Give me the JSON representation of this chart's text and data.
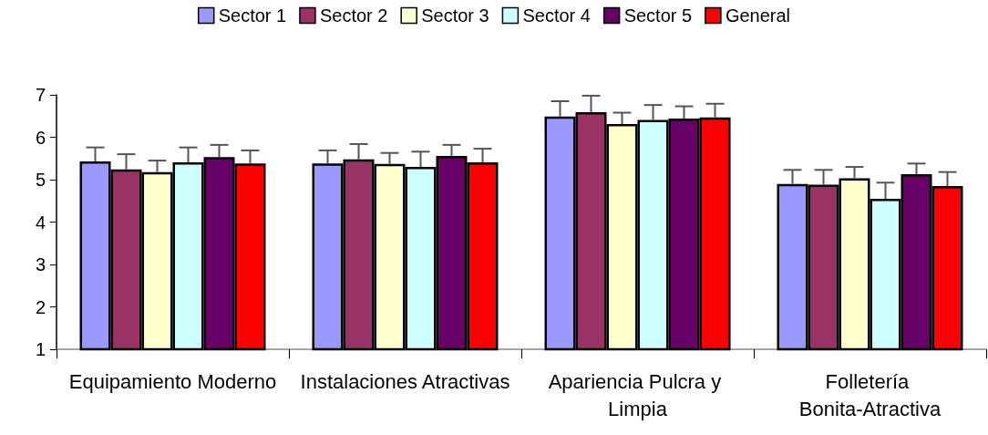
{
  "chart_data": {
    "type": "bar",
    "categories": [
      "Equipamiento Moderno",
      "Instalaciones Atractivas",
      "Apariencia Pulcra y Limpia",
      "Folletería Bonita-Atractiva"
    ],
    "series": [
      {
        "name": "Sector 1",
        "color": "#9999ff",
        "values": [
          5.43,
          5.38,
          6.49,
          4.9
        ],
        "errors": [
          [
            5.43,
            5.76
          ],
          [
            5.38,
            5.69
          ],
          [
            6.49,
            6.85
          ],
          [
            4.9,
            5.23
          ]
        ]
      },
      {
        "name": "Sector 2",
        "color": "#993366",
        "values": [
          5.24,
          5.48,
          6.59,
          4.88
        ],
        "errors": [
          [
            5.24,
            5.6
          ],
          [
            5.48,
            5.84
          ],
          [
            6.59,
            6.98
          ],
          [
            4.88,
            5.23
          ]
        ]
      },
      {
        "name": "Sector 3",
        "color": "#ffffcc",
        "values": [
          5.18,
          5.37,
          6.31,
          5.03
        ],
        "errors": [
          [
            5.18,
            5.45
          ],
          [
            5.37,
            5.63
          ],
          [
            6.31,
            6.58
          ],
          [
            5.03,
            5.3
          ]
        ]
      },
      {
        "name": "Sector 4",
        "color": "#ccffff",
        "values": [
          5.41,
          5.3,
          6.41,
          4.55
        ],
        "errors": [
          [
            5.41,
            5.76
          ],
          [
            5.3,
            5.66
          ],
          [
            6.41,
            6.76
          ],
          [
            4.55,
            4.93
          ]
        ]
      },
      {
        "name": "Sector 5",
        "color": "#660066",
        "values": [
          5.53,
          5.56,
          6.44,
          5.13
        ],
        "errors": [
          [
            5.53,
            5.82
          ],
          [
            5.56,
            5.82
          ],
          [
            6.44,
            6.73
          ],
          [
            5.13,
            5.38
          ]
        ]
      },
      {
        "name": "General",
        "color": "#ff0000",
        "values": [
          5.38,
          5.41,
          6.47,
          4.85
        ],
        "errors": [
          [
            5.38,
            5.69
          ],
          [
            5.41,
            5.73
          ],
          [
            6.47,
            6.79
          ],
          [
            4.85,
            5.18
          ]
        ]
      }
    ],
    "ylim": [
      1,
      7
    ],
    "yticks": [
      1,
      2,
      3,
      4,
      5,
      6,
      7
    ],
    "grid": false,
    "legend": "top"
  }
}
